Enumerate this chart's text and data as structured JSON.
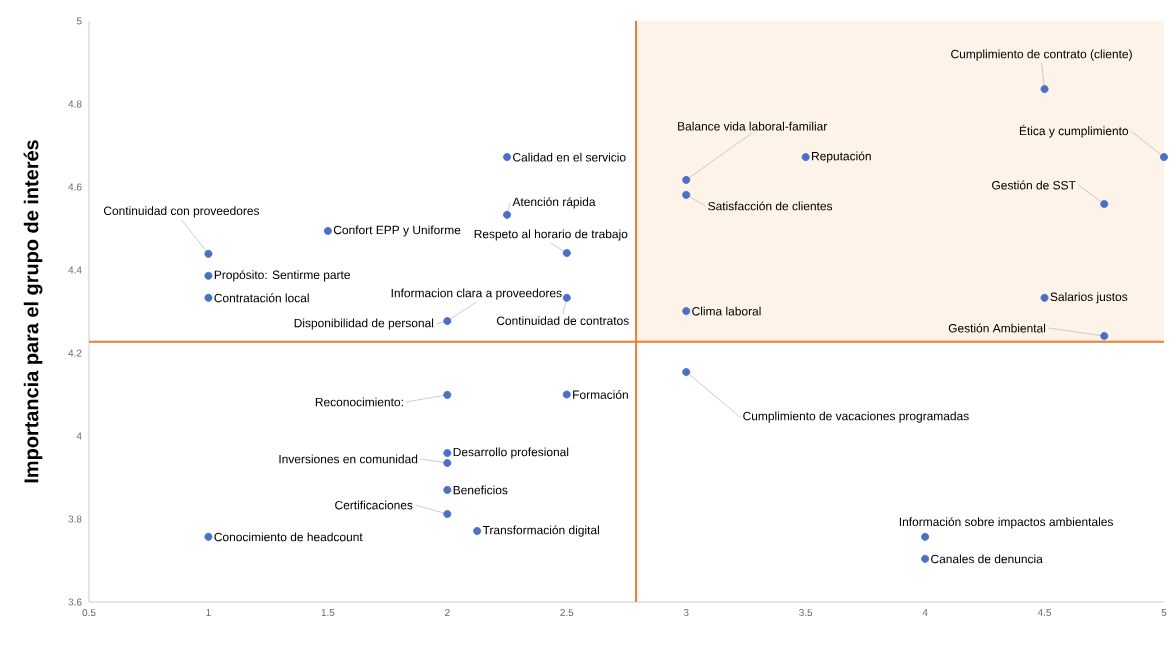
{
  "chart_data": {
    "type": "scatter",
    "ylabel": "Importancia para el grupo de interés",
    "xlim": [
      0.5,
      5
    ],
    "ylim": [
      3.6,
      5
    ],
    "xticks": [
      0.5,
      1,
      1.5,
      2,
      2.5,
      3,
      3.5,
      4,
      4.5,
      5
    ],
    "yticks": [
      3.6,
      3.8,
      4,
      4.2,
      4.4,
      4.6,
      4.8,
      5
    ],
    "marker": "circle",
    "series": [
      {
        "color": "#4a6fc4",
        "x": [
          4.5,
          5,
          4.75,
          4.5,
          4.75,
          3,
          3,
          3.5,
          3,
          3,
          2.25,
          2.25,
          2.5,
          2.5,
          2,
          1.5,
          1,
          1,
          1,
          2,
          2.5,
          2,
          2,
          2,
          2,
          2.125,
          1,
          4,
          4
        ],
        "values": [
          4.836,
          4.672,
          4.559,
          4.333,
          4.241,
          4.617,
          4.581,
          4.672,
          4.301,
          4.154,
          4.672,
          4.533,
          4.441,
          4.333,
          4.277,
          4.494,
          4.439,
          4.386,
          4.333,
          4.099,
          4.1,
          3.959,
          3.935,
          3.87,
          3.812,
          3.771,
          3.757,
          3.757,
          3.704
        ]
      }
    ],
    "ref_lines": [
      {
        "axis": "x",
        "value": 2.79,
        "color": "#ee7d31"
      },
      {
        "axis": "y",
        "value": 4.227,
        "color": "#ee7d31"
      }
    ],
    "bands": [
      {
        "axis": "x",
        "from": 2.79,
        "to": 5,
        "color": "#fdf3e9"
      }
    ],
    "annotations": [
      {
        "text": "Cumplimiento de contrato (cliente)",
        "x": 4.5,
        "y": 4.836
      },
      {
        "text": "Ética y cumplimiento",
        "x": 5,
        "y": 4.672
      },
      {
        "text": "Gestión de SST",
        "x": 4.75,
        "y": 4.559
      },
      {
        "text": "Salarios justos",
        "x": 4.5,
        "y": 4.333
      },
      {
        "text": "Gestión Ambiental",
        "x": 4.75,
        "y": 4.241
      },
      {
        "text": "Balance vida laboral-familiar",
        "x": 3,
        "y": 4.617
      },
      {
        "text": "Satisfacción de clientes",
        "x": 3,
        "y": 4.581
      },
      {
        "text": "Reputación",
        "x": 3.5,
        "y": 4.672
      },
      {
        "text": "Clima laboral",
        "x": 3,
        "y": 4.301
      },
      {
        "text": "Cumplimiento de vacaciones programadas",
        "x": 3,
        "y": 4.154
      },
      {
        "text": "Calidad en el servicio",
        "x": 2.25,
        "y": 4.672
      },
      {
        "text": "Atención rápida",
        "x": 2.25,
        "y": 4.533
      },
      {
        "text": "Respeto al horario de trabajo",
        "x": 2.5,
        "y": 4.441
      },
      {
        "text": "Continuidad de contratos",
        "x": 2.5,
        "y": 4.333
      },
      {
        "text": "Informacion clara a proveedores",
        "x": 2,
        "y": 4.277
      },
      {
        "text": "Disponibilidad de personal",
        "x": 2,
        "y": 4.277
      },
      {
        "text": "Confort EPP y Uniforme",
        "x": 1.5,
        "y": 4.494
      },
      {
        "text": "Continuidad con proveedores",
        "x": 1,
        "y": 4.439
      },
      {
        "text": "Propósito: Sentirme parte",
        "x": 1,
        "y": 4.386
      },
      {
        "text": "Contratación local",
        "x": 1,
        "y": 4.333
      },
      {
        "text": "Reconocimiento:",
        "x": 2,
        "y": 4.099
      },
      {
        "text": "Formación",
        "x": 2.5,
        "y": 4.1
      },
      {
        "text": "Desarrollo profesional",
        "x": 2,
        "y": 3.959
      },
      {
        "text": "Inversiones en comunidad",
        "x": 2,
        "y": 3.935
      },
      {
        "text": "Beneficios",
        "x": 2,
        "y": 3.87
      },
      {
        "text": "Certificaciones",
        "x": 2,
        "y": 3.812
      },
      {
        "text": "Transformación digital",
        "x": 2.125,
        "y": 3.771
      },
      {
        "text": "Conocimiento de headcount",
        "x": 1,
        "y": 3.757
      },
      {
        "text": "Información sobre impactos ambientales",
        "x": 4,
        "y": 3.757
      },
      {
        "text": "Canales de denuncia",
        "x": 4,
        "y": 3.704
      }
    ]
  }
}
